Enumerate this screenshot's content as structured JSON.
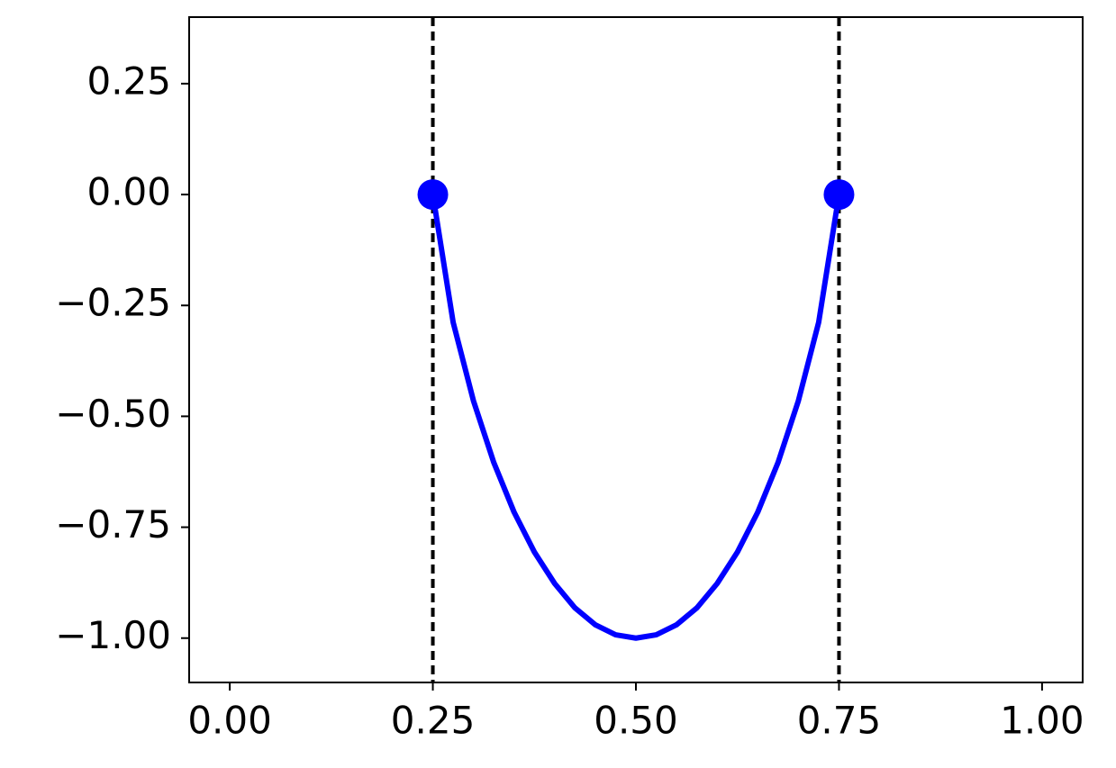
{
  "chart_data": {
    "type": "line",
    "xlim": [
      -0.05,
      1.05
    ],
    "ylim": [
      -1.1,
      0.4
    ],
    "xticks": [
      {
        "value": 0,
        "label": "0.00"
      },
      {
        "value": 0.25,
        "label": "0.25"
      },
      {
        "value": 0.5,
        "label": "0.50"
      },
      {
        "value": 0.75,
        "label": "0.75"
      },
      {
        "value": 1,
        "label": "1.00"
      }
    ],
    "yticks": [
      {
        "value": -1,
        "label": "−1.00"
      },
      {
        "value": -0.75,
        "label": "−0.75"
      },
      {
        "value": -0.5,
        "label": "−0.50"
      },
      {
        "value": -0.25,
        "label": "−0.25"
      },
      {
        "value": 0,
        "label": "0.00"
      },
      {
        "value": 0.25,
        "label": "0.25"
      }
    ],
    "series": [
      {
        "color": "#0000ff",
        "x": [
          0.25,
          0.275,
          0.3,
          0.325,
          0.35,
          0.375,
          0.4,
          0.425,
          0.45,
          0.475,
          0.5,
          0.525,
          0.55,
          0.575,
          0.6,
          0.625,
          0.65,
          0.675,
          0.7,
          0.725,
          0.75
        ],
        "values": [
          0,
          -0.288,
          -0.465,
          -0.604,
          -0.716,
          -0.806,
          -0.877,
          -0.932,
          -0.97,
          -0.9925,
          -1,
          -0.9925,
          -0.97,
          -0.932,
          -0.877,
          -0.806,
          -0.716,
          -0.604,
          -0.465,
          -0.288,
          0
        ]
      }
    ],
    "points": {
      "color": "#0000ff",
      "x": [
        0.25,
        0.75
      ],
      "values": [
        0,
        0
      ]
    },
    "vlines": {
      "color": "#000000",
      "style": "dashed",
      "x": [
        0.25,
        0.75
      ]
    }
  }
}
